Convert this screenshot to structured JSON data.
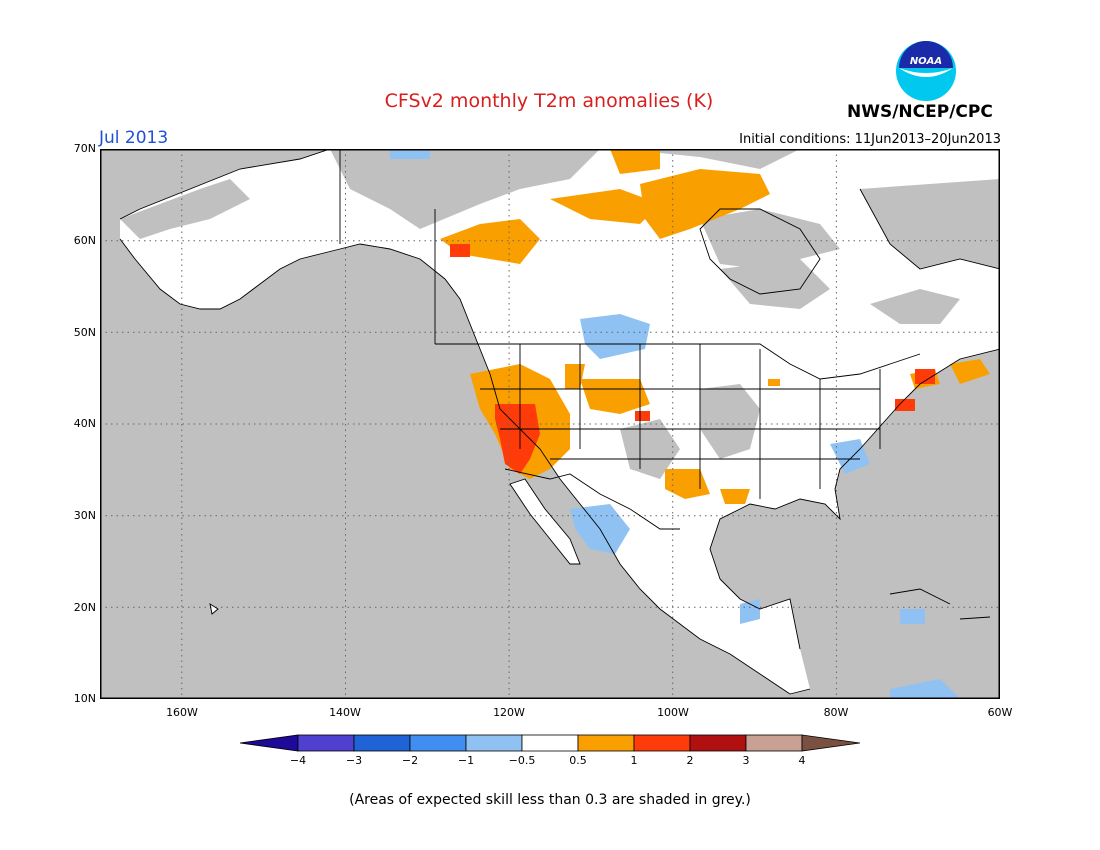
{
  "header": {
    "title": "CFSv2 monthly T2m anomalies (K)",
    "month": "Jul 2013",
    "initial_conditions": "Initial conditions: 11Jun2013–20Jun2013",
    "org": "NWS/NCEP/CPC",
    "logo_text": "NOAA"
  },
  "axes": {
    "lat_labels": [
      "70N",
      "60N",
      "50N",
      "40N",
      "30N",
      "20N",
      "10N"
    ],
    "lon_labels": [
      "160W",
      "140W",
      "120W",
      "100W",
      "80W",
      "60W"
    ]
  },
  "colorbar": {
    "labels": [
      "−4",
      "−3",
      "−2",
      "−1",
      "−0.5",
      "0.5",
      "1",
      "2",
      "3",
      "4"
    ],
    "colors": [
      "#1e0a99",
      "#5040d0",
      "#1f63d6",
      "#3f8ef0",
      "#8fc2f2",
      "#ffffff",
      "#f9a000",
      "#ff3b0a",
      "#b01010",
      "#c8a094",
      "#7a5040"
    ]
  },
  "colors": {
    "grey_low_skill": "#c0c0c0",
    "land_white": "#ffffff"
  },
  "footnote": "(Areas of expected skill less than 0.3 are shaded in grey.)"
}
